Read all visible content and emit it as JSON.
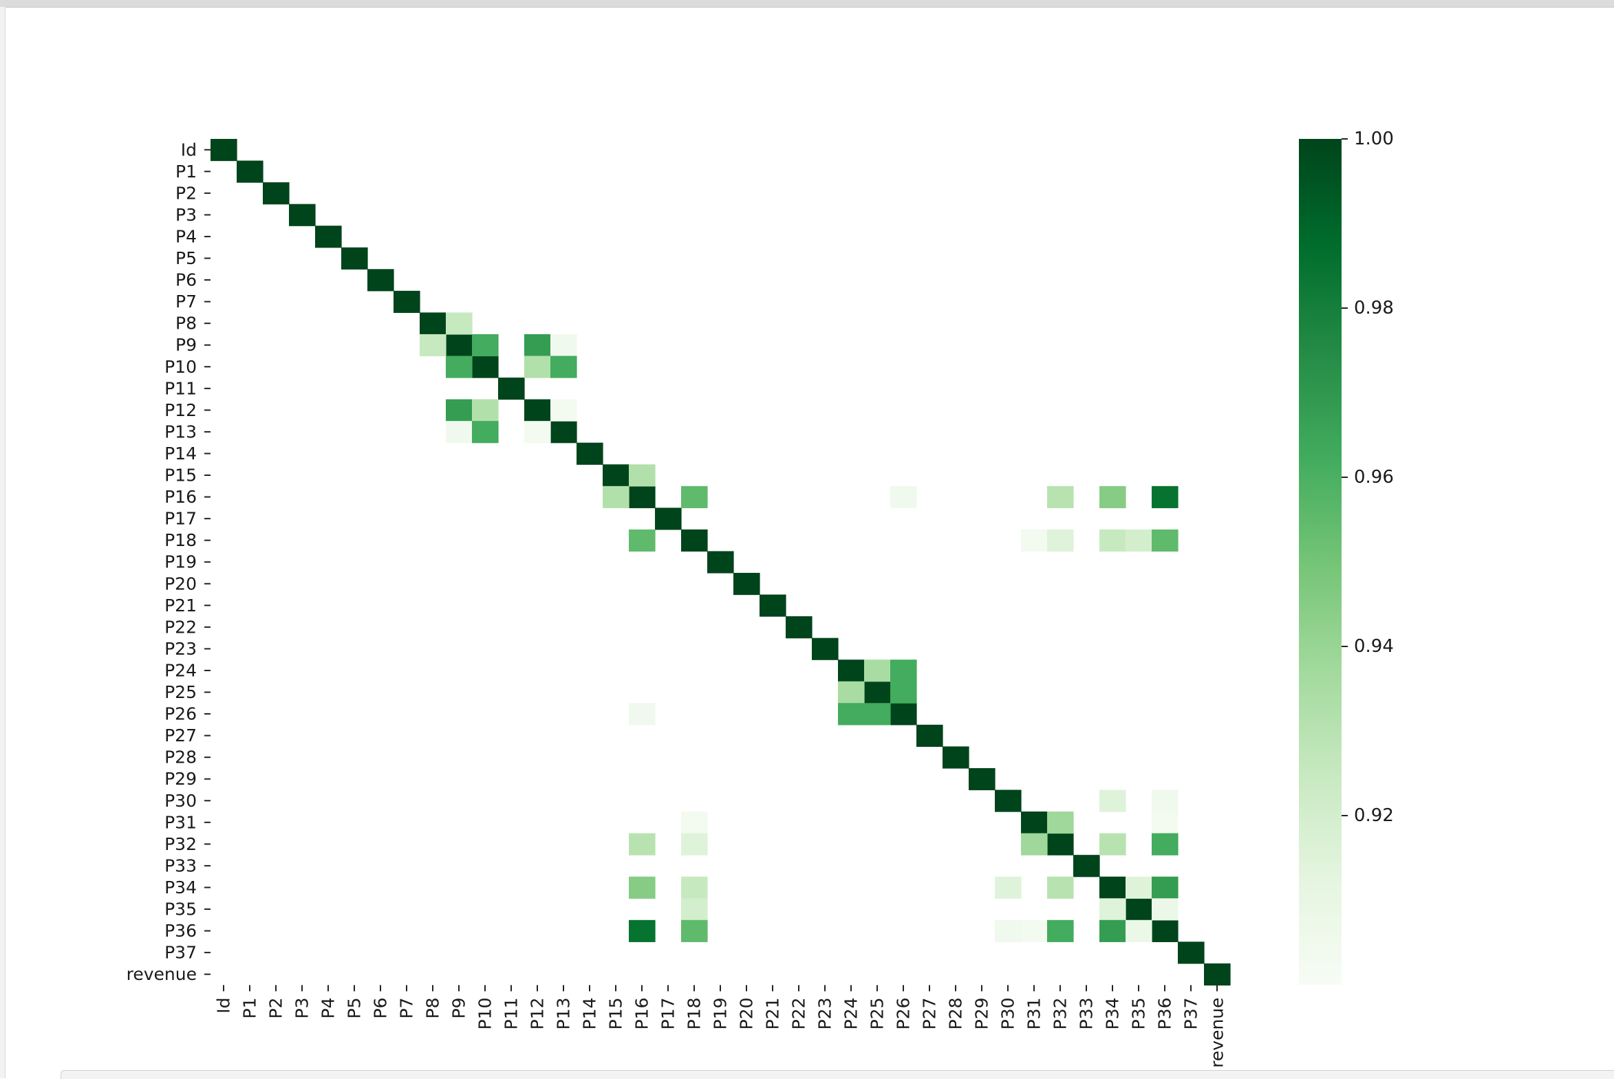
{
  "chart_data": {
    "type": "heatmap",
    "title": "",
    "xlabel": "",
    "ylabel": "",
    "labels": [
      "Id",
      "P1",
      "P2",
      "P3",
      "P4",
      "P5",
      "P6",
      "P7",
      "P8",
      "P9",
      "P10",
      "P11",
      "P12",
      "P13",
      "P14",
      "P15",
      "P16",
      "P17",
      "P18",
      "P19",
      "P20",
      "P21",
      "P22",
      "P23",
      "P24",
      "P25",
      "P26",
      "P27",
      "P28",
      "P29",
      "P30",
      "P31",
      "P32",
      "P33",
      "P34",
      "P35",
      "P36",
      "P37",
      "revenue"
    ],
    "diagonal_value": 1.0,
    "display_threshold": 0.9,
    "off_diagonal_cells": [
      {
        "row": "P8",
        "col": "P9",
        "value": 0.925
      },
      {
        "row": "P9",
        "col": "P10",
        "value": 0.962
      },
      {
        "row": "P9",
        "col": "P12",
        "value": 0.968
      },
      {
        "row": "P9",
        "col": "P13",
        "value": 0.905
      },
      {
        "row": "P10",
        "col": "P12",
        "value": 0.932
      },
      {
        "row": "P10",
        "col": "P13",
        "value": 0.962
      },
      {
        "row": "P12",
        "col": "P13",
        "value": 0.903
      },
      {
        "row": "P15",
        "col": "P16",
        "value": 0.932
      },
      {
        "row": "P16",
        "col": "P18",
        "value": 0.955
      },
      {
        "row": "P16",
        "col": "P26",
        "value": 0.905
      },
      {
        "row": "P16",
        "col": "P32",
        "value": 0.93
      },
      {
        "row": "P16",
        "col": "P34",
        "value": 0.945
      },
      {
        "row": "P16",
        "col": "P36",
        "value": 0.985
      },
      {
        "row": "P18",
        "col": "P31",
        "value": 0.903
      },
      {
        "row": "P18",
        "col": "P32",
        "value": 0.915
      },
      {
        "row": "P18",
        "col": "P34",
        "value": 0.925
      },
      {
        "row": "P18",
        "col": "P35",
        "value": 0.92
      },
      {
        "row": "P18",
        "col": "P36",
        "value": 0.955
      },
      {
        "row": "P24",
        "col": "P25",
        "value": 0.935
      },
      {
        "row": "P24",
        "col": "P26",
        "value": 0.962
      },
      {
        "row": "P25",
        "col": "P26",
        "value": 0.962
      },
      {
        "row": "P30",
        "col": "P34",
        "value": 0.915
      },
      {
        "row": "P30",
        "col": "P36",
        "value": 0.905
      },
      {
        "row": "P31",
        "col": "P32",
        "value": 0.938
      },
      {
        "row": "P31",
        "col": "P36",
        "value": 0.903
      },
      {
        "row": "P32",
        "col": "P34",
        "value": 0.93
      },
      {
        "row": "P32",
        "col": "P36",
        "value": 0.962
      },
      {
        "row": "P34",
        "col": "P35",
        "value": 0.915
      },
      {
        "row": "P34",
        "col": "P36",
        "value": 0.968
      },
      {
        "row": "P35",
        "col": "P36",
        "value": 0.908
      }
    ],
    "colorbar": {
      "min": 0.9,
      "max": 1.0,
      "ticks": [
        0.92,
        0.94,
        0.96,
        0.98,
        1.0
      ],
      "tick_labels": [
        "0.92",
        "0.94",
        "0.96",
        "0.98",
        "1.00"
      ]
    },
    "colormap": [
      "#f7fcf5",
      "#e5f5e0",
      "#c7e9c0",
      "#a1d99b",
      "#74c476",
      "#41ab5d",
      "#238b45",
      "#006d2c",
      "#00441b"
    ]
  }
}
